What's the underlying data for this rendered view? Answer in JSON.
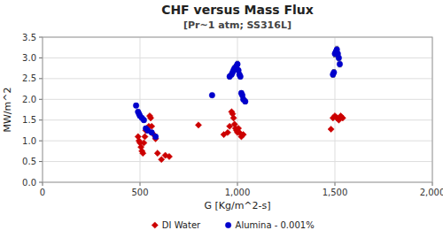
{
  "chart_data": {
    "type": "scatter",
    "title": "CHF versus Mass Flux",
    "subtitle": "[Pr~1 atm; SS316L]",
    "x_label": "G [Kg/m^2-s]",
    "y_label": "MW/m^2",
    "xlim": [
      0,
      2000
    ],
    "ylim": [
      0.0,
      3.5
    ],
    "xticks": [
      0,
      500,
      {
        "value": 1000,
        "label": "1,000"
      },
      {
        "value": 1500,
        "label": "1,500"
      },
      {
        "value": 2000,
        "label": "2,000"
      }
    ],
    "yticks": [
      {
        "value": 0,
        "label": "0.0"
      },
      0.5,
      {
        "value": 1,
        "label": "1.0"
      },
      1.5,
      {
        "value": 2,
        "label": "2.0"
      },
      2.5,
      {
        "value": 3,
        "label": "3.0"
      },
      3.5
    ],
    "grid": true,
    "legend": "bottom",
    "series": [
      {
        "name": "DI Water",
        "color": "#cc0000",
        "marker": "diamond",
        "x": [
          490,
          495,
          500,
          505,
          510,
          515,
          520,
          525,
          530,
          535,
          545,
          550,
          555,
          560,
          570,
          580,
          590,
          610,
          630,
          650,
          800,
          930,
          950,
          960,
          970,
          975,
          980,
          985,
          990,
          995,
          1000,
          1005,
          1010,
          1020,
          1030,
          1480,
          1490,
          1500,
          1510,
          1520,
          1530,
          1540
        ],
        "values": [
          1.1,
          1.0,
          0.95,
          0.85,
          0.75,
          0.7,
          0.95,
          1.1,
          1.25,
          1.3,
          1.35,
          1.6,
          1.55,
          1.35,
          1.15,
          1.05,
          0.7,
          0.55,
          0.65,
          0.62,
          1.38,
          1.15,
          1.2,
          1.35,
          1.7,
          1.65,
          1.55,
          1.4,
          1.3,
          1.25,
          1.2,
          1.3,
          1.2,
          1.1,
          1.15,
          1.28,
          1.55,
          1.6,
          1.55,
          1.5,
          1.6,
          1.55
        ]
      },
      {
        "name": "Alumina - 0.001%",
        "color": "#0000cc",
        "marker": "circle",
        "x": [
          480,
          490,
          495,
          500,
          510,
          520,
          530,
          540,
          560,
          580,
          870,
          960,
          970,
          975,
          980,
          985,
          990,
          995,
          1000,
          1005,
          1010,
          1015,
          1020,
          1025,
          1030,
          1040,
          1490,
          1495,
          1500,
          1505,
          1510,
          1515,
          1520,
          1525
        ],
        "values": [
          1.85,
          1.7,
          1.65,
          1.6,
          1.55,
          1.5,
          1.3,
          1.25,
          1.2,
          1.1,
          2.1,
          2.55,
          2.6,
          2.65,
          2.7,
          2.75,
          2.75,
          2.8,
          2.85,
          2.7,
          2.6,
          2.55,
          2.15,
          2.1,
          2.0,
          1.95,
          2.6,
          2.65,
          3.1,
          3.15,
          3.2,
          3.1,
          3.0,
          2.85
        ],
        "errors": [
          0.05,
          0.05,
          0.05,
          0.05,
          0.05,
          0.05,
          0.05,
          0.05,
          0.05,
          0.05,
          0.05,
          0.06,
          0.06,
          0.06,
          0.06,
          0.07,
          0.07,
          0.07,
          0.07,
          0.06,
          0.06,
          0.06,
          0.06,
          0.06,
          0.06,
          0.06,
          0.07,
          0.07,
          0.08,
          0.08,
          0.08,
          0.08,
          0.07,
          0.07
        ]
      }
    ]
  }
}
